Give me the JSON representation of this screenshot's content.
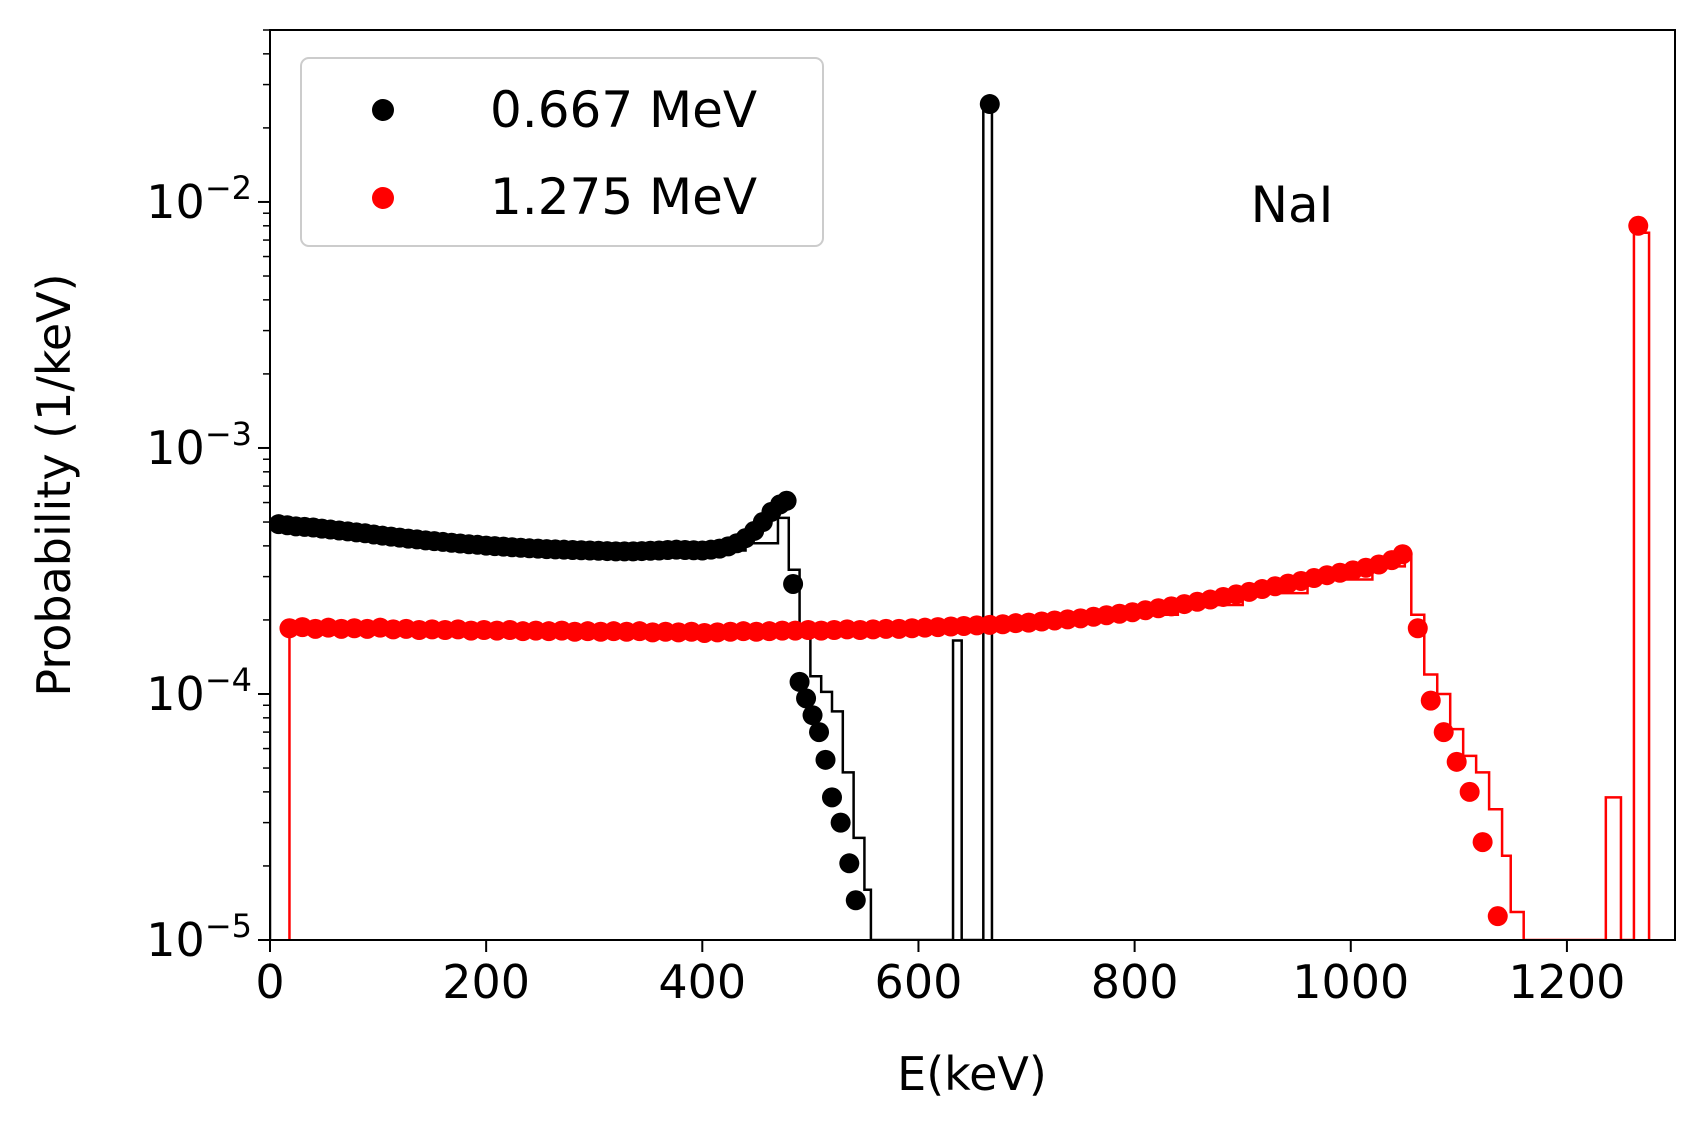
{
  "chart_data": {
    "type": "scatter",
    "title": "",
    "xlabel": "E(keV)",
    "ylabel": "Probability (1/keV)",
    "annotation": "NaI",
    "xlim": [
      0,
      1300
    ],
    "ylim": [
      1e-05,
      0.05
    ],
    "yscale": "log",
    "legend_position": "top-left",
    "x_ticks": [
      0,
      200,
      400,
      600,
      800,
      1000,
      1200
    ],
    "y_ticks": [
      {
        "value": 1e-05,
        "base": "10",
        "exp": "−5"
      },
      {
        "value": 0.0001,
        "base": "10",
        "exp": "−4"
      },
      {
        "value": 0.001,
        "base": "10",
        "exp": "−3"
      },
      {
        "value": 0.01,
        "base": "10",
        "exp": "−2"
      }
    ],
    "series": [
      {
        "name": "0.667 MeV",
        "color": "#000000",
        "points": [
          [
            8,
            0.00049
          ],
          [
            16,
            0.000485
          ],
          [
            24,
            0.00048
          ],
          [
            32,
            0.000478
          ],
          [
            40,
            0.000475
          ],
          [
            48,
            0.00047
          ],
          [
            56,
            0.000466
          ],
          [
            64,
            0.000462
          ],
          [
            72,
            0.000458
          ],
          [
            80,
            0.000454
          ],
          [
            88,
            0.00045
          ],
          [
            96,
            0.000445
          ],
          [
            104,
            0.00044
          ],
          [
            112,
            0.000436
          ],
          [
            120,
            0.000432
          ],
          [
            128,
            0.000428
          ],
          [
            136,
            0.000425
          ],
          [
            144,
            0.000421
          ],
          [
            152,
            0.000418
          ],
          [
            160,
            0.000415
          ],
          [
            168,
            0.000412
          ],
          [
            176,
            0.000409
          ],
          [
            184,
            0.000406
          ],
          [
            192,
            0.000404
          ],
          [
            200,
            0.000401
          ],
          [
            208,
            0.000399
          ],
          [
            216,
            0.000397
          ],
          [
            224,
            0.000395
          ],
          [
            232,
            0.000393
          ],
          [
            240,
            0.000391
          ],
          [
            248,
            0.00039
          ],
          [
            256,
            0.000388
          ],
          [
            264,
            0.000387
          ],
          [
            272,
            0.000386
          ],
          [
            280,
            0.000385
          ],
          [
            288,
            0.000384
          ],
          [
            296,
            0.000383
          ],
          [
            304,
            0.000382
          ],
          [
            312,
            0.000381
          ],
          [
            320,
            0.00038
          ],
          [
            328,
            0.00038
          ],
          [
            336,
            0.00038
          ],
          [
            344,
            0.000381
          ],
          [
            352,
            0.000382
          ],
          [
            360,
            0.000383
          ],
          [
            368,
            0.000385
          ],
          [
            376,
            0.000386
          ],
          [
            384,
            0.000385
          ],
          [
            392,
            0.000384
          ],
          [
            400,
            0.000383
          ],
          [
            408,
            0.000386
          ],
          [
            416,
            0.00039
          ],
          [
            424,
            0.000398
          ],
          [
            432,
            0.00041
          ],
          [
            440,
            0.00043
          ],
          [
            448,
            0.00046
          ],
          [
            456,
            0.0005
          ],
          [
            464,
            0.00055
          ],
          [
            472,
            0.00059
          ],
          [
            478,
            0.00061
          ],
          [
            484,
            0.00028
          ],
          [
            490,
            0.000112
          ],
          [
            496,
            9.6e-05
          ],
          [
            502,
            8.2e-05
          ],
          [
            508,
            7e-05
          ],
          [
            514,
            5.4e-05
          ],
          [
            520,
            3.8e-05
          ],
          [
            528,
            3e-05
          ],
          [
            536,
            2.05e-05
          ],
          [
            542,
            1.45e-05
          ],
          [
            666,
            0.025
          ]
        ],
        "hist": [
          [
            0,
            0.00049
          ],
          [
            40,
            0.000475
          ],
          [
            80,
            0.000454
          ],
          [
            120,
            0.000432
          ],
          [
            160,
            0.000415
          ],
          [
            200,
            0.000401
          ],
          [
            240,
            0.000391
          ],
          [
            280,
            0.000385
          ],
          [
            320,
            0.00038
          ],
          [
            360,
            0.000383
          ],
          [
            400,
            0.000383
          ],
          [
            440,
            0.00041
          ],
          [
            470,
            0.00052
          ],
          [
            480,
            0.00032
          ],
          [
            490,
            0.00019
          ],
          [
            500,
            0.000118
          ],
          [
            510,
            0.000102
          ],
          [
            520,
            8.5e-05
          ],
          [
            530,
            4.8e-05
          ],
          [
            540,
            2.6e-05
          ],
          [
            550,
            1.6e-05
          ],
          [
            556,
            1e-05
          ],
          [
            632,
            1e-05
          ],
          [
            632,
            0.000165
          ],
          [
            640,
            0.000165
          ],
          [
            640,
            1e-05
          ],
          [
            660,
            1e-05
          ],
          [
            660,
            0.025
          ],
          [
            668,
            0.025
          ],
          [
            668,
            1e-05
          ]
        ]
      },
      {
        "name": "1.275 MeV",
        "color": "#ff0000",
        "points": [
          [
            18,
            0.000185
          ],
          [
            30,
            0.000187
          ],
          [
            42,
            0.000184
          ],
          [
            54,
            0.000186
          ],
          [
            66,
            0.000184
          ],
          [
            78,
            0.000185
          ],
          [
            90,
            0.000184
          ],
          [
            102,
            0.000186
          ],
          [
            114,
            0.000183
          ],
          [
            126,
            0.000184
          ],
          [
            138,
            0.000182
          ],
          [
            150,
            0.000183
          ],
          [
            162,
            0.000182
          ],
          [
            174,
            0.000183
          ],
          [
            186,
            0.000181
          ],
          [
            198,
            0.000182
          ],
          [
            210,
            0.000181
          ],
          [
            222,
            0.000182
          ],
          [
            234,
            0.00018
          ],
          [
            246,
            0.000181
          ],
          [
            258,
            0.00018
          ],
          [
            270,
            0.000181
          ],
          [
            282,
            0.000179
          ],
          [
            294,
            0.00018
          ],
          [
            306,
            0.000179
          ],
          [
            318,
            0.00018
          ],
          [
            330,
            0.000179
          ],
          [
            342,
            0.00018
          ],
          [
            354,
            0.000178
          ],
          [
            366,
            0.000179
          ],
          [
            378,
            0.000178
          ],
          [
            390,
            0.000179
          ],
          [
            402,
            0.000177
          ],
          [
            414,
            0.000178
          ],
          [
            426,
            0.000179
          ],
          [
            438,
            0.00018
          ],
          [
            450,
            0.000179
          ],
          [
            462,
            0.00018
          ],
          [
            474,
            0.000181
          ],
          [
            486,
            0.000181
          ],
          [
            498,
            0.000182
          ],
          [
            510,
            0.000181
          ],
          [
            522,
            0.000182
          ],
          [
            534,
            0.000183
          ],
          [
            546,
            0.000182
          ],
          [
            558,
            0.000183
          ],
          [
            570,
            0.000184
          ],
          [
            582,
            0.000184
          ],
          [
            594,
            0.000185
          ],
          [
            606,
            0.000186
          ],
          [
            618,
            0.000187
          ],
          [
            630,
            0.000188
          ],
          [
            642,
            0.000189
          ],
          [
            654,
            0.00019
          ],
          [
            666,
            0.000191
          ],
          [
            678,
            0.000192
          ],
          [
            690,
            0.000194
          ],
          [
            702,
            0.000195
          ],
          [
            714,
            0.000197
          ],
          [
            726,
            0.000199
          ],
          [
            738,
            0.000201
          ],
          [
            750,
            0.000203
          ],
          [
            762,
            0.000206
          ],
          [
            774,
            0.000209
          ],
          [
            786,
            0.000212
          ],
          [
            798,
            0.000215
          ],
          [
            810,
            0.000219
          ],
          [
            822,
            0.000223
          ],
          [
            834,
            0.000227
          ],
          [
            846,
            0.000232
          ],
          [
            858,
            0.000237
          ],
          [
            870,
            0.000242
          ],
          [
            882,
            0.000248
          ],
          [
            894,
            0.000254
          ],
          [
            906,
            0.00026
          ],
          [
            918,
            0.000267
          ],
          [
            930,
            0.000274
          ],
          [
            942,
            0.000281
          ],
          [
            954,
            0.000288
          ],
          [
            966,
            0.000296
          ],
          [
            978,
            0.000304
          ],
          [
            990,
            0.000311
          ],
          [
            1002,
            0.000318
          ],
          [
            1014,
            0.000326
          ],
          [
            1026,
            0.000336
          ],
          [
            1038,
            0.00035
          ],
          [
            1048,
            0.00037
          ],
          [
            1062,
            0.000185
          ],
          [
            1074,
            9.4e-05
          ],
          [
            1086,
            7e-05
          ],
          [
            1098,
            5.3e-05
          ],
          [
            1110,
            4e-05
          ],
          [
            1122,
            2.5e-05
          ],
          [
            1136,
            1.25e-05
          ],
          [
            1266,
            0.008
          ]
        ],
        "hist": [
          [
            18,
            0.000186
          ],
          [
            60,
            0.000185
          ],
          [
            120,
            0.000184
          ],
          [
            180,
            0.000182
          ],
          [
            240,
            0.000181
          ],
          [
            300,
            0.00018
          ],
          [
            360,
            0.000179
          ],
          [
            420,
            0.000178
          ],
          [
            480,
            0.000181
          ],
          [
            540,
            0.000182
          ],
          [
            600,
            0.000185
          ],
          [
            660,
            0.00019
          ],
          [
            720,
            0.000198
          ],
          [
            780,
            0.00021
          ],
          [
            840,
            0.00023
          ],
          [
            900,
            0.000257
          ],
          [
            960,
            0.000292
          ],
          [
            1020,
            0.00033
          ],
          [
            1050,
            0.00037
          ],
          [
            1056,
            0.00021
          ],
          [
            1068,
            0.00012
          ],
          [
            1080,
            0.0001
          ],
          [
            1092,
            7.2e-05
          ],
          [
            1104,
            5.6e-05
          ],
          [
            1116,
            4.8e-05
          ],
          [
            1128,
            3.4e-05
          ],
          [
            1140,
            2.2e-05
          ],
          [
            1148,
            1.3e-05
          ],
          [
            1160,
            1e-05
          ],
          [
            1236,
            1e-05
          ],
          [
            1236,
            3.8e-05
          ],
          [
            1250,
            3.8e-05
          ],
          [
            1250,
            1e-05
          ],
          [
            1262,
            1e-05
          ],
          [
            1262,
            0.0075
          ],
          [
            1276,
            0.0075
          ],
          [
            1276,
            1e-05
          ]
        ]
      }
    ]
  }
}
